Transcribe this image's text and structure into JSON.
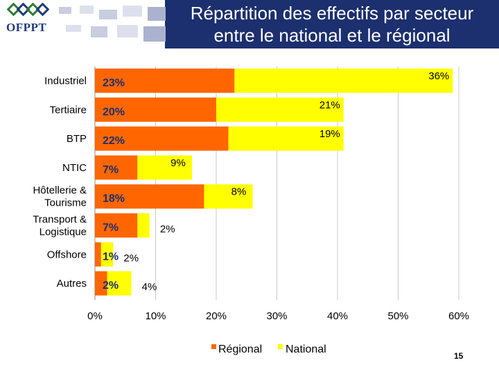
{
  "header": {
    "logo_text": "OFPPT",
    "title_line1": "Répartition des effectifs par secteur",
    "title_line2": "entre le national et le régional"
  },
  "colors": {
    "regional": "#ff6600",
    "national": "#ffff00",
    "title_band": "#1c2f6e",
    "regional_label": "#1c2f6e",
    "national_label": "#000000"
  },
  "chart_data": {
    "type": "bar",
    "orientation": "horizontal",
    "categories": [
      "Industriel",
      "Tertiaire",
      "BTP",
      "NTIC",
      "Hôtellerie & Tourisme",
      "Transport & Logistique",
      "Offshore",
      "Autres"
    ],
    "series": [
      {
        "name": "Régional",
        "values": [
          23,
          20,
          22,
          7,
          18,
          7,
          1,
          2
        ],
        "labels": [
          "23%",
          "20%",
          "22%",
          "7%",
          "18%",
          "7%",
          "1%",
          "2%"
        ]
      },
      {
        "name": "National",
        "values": [
          36,
          21,
          19,
          9,
          8,
          2,
          2,
          4
        ],
        "labels": [
          "36%",
          "21%",
          "19%",
          "9%",
          "8%",
          "2%",
          "2%",
          "4%"
        ]
      }
    ],
    "xlim": [
      0,
      60
    ],
    "xticks": [
      "0%",
      "10%",
      "20%",
      "30%",
      "40%",
      "50%",
      "60%"
    ],
    "grid": true,
    "legend_position": "bottom"
  },
  "page_number": "15"
}
